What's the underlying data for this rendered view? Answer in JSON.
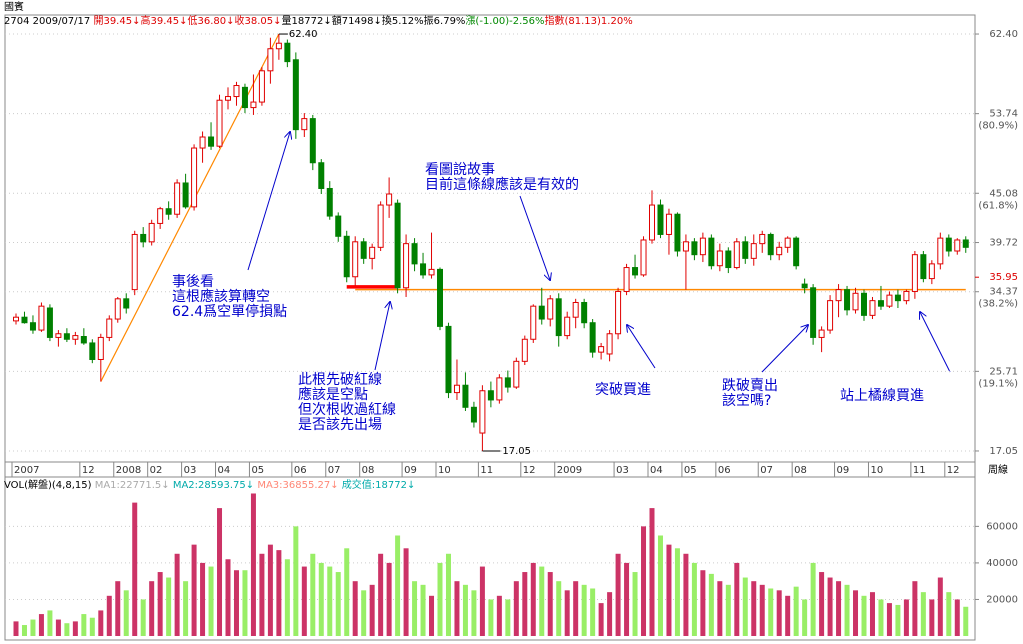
{
  "chart_data": {
    "type": "candlestick",
    "title": "國賓",
    "info": [
      {
        "text": "2704 2009/07/17 ",
        "color": "#000000"
      },
      {
        "text": "開39.45↓",
        "color": "#dd0000"
      },
      {
        "text": "高39.45↓",
        "color": "#dd0000"
      },
      {
        "text": "低36.80↓",
        "color": "#dd0000"
      },
      {
        "text": "收38.05↓",
        "color": "#dd0000"
      },
      {
        "text": "量18772↓額71498↓換5.12%振6.79%",
        "color": "#000000"
      },
      {
        "text": "漲(-1.00)-2.56%",
        "color": "#008800"
      },
      {
        "text": "指數(81.13)1.20%",
        "color": "#dd0000"
      }
    ],
    "period_label": "周線",
    "categories": [
      "2007",
      null,
      null,
      null,
      null,
      null,
      null,
      null,
      "12",
      null,
      null,
      null,
      "2008",
      null,
      null,
      null,
      "02",
      null,
      null,
      null,
      "03",
      null,
      null,
      null,
      "04",
      null,
      null,
      null,
      "05",
      null,
      null,
      null,
      null,
      "06",
      null,
      null,
      null,
      "07",
      null,
      null,
      null,
      "08",
      null,
      null,
      null,
      null,
      "09",
      null,
      null,
      null,
      "10",
      null,
      null,
      null,
      null,
      "11",
      null,
      null,
      null,
      null,
      "12",
      null,
      null,
      null,
      "2009",
      null,
      null,
      null,
      null,
      null,
      null,
      "03",
      null,
      null,
      null,
      "04",
      null,
      null,
      null,
      "05",
      null,
      null,
      null,
      "06",
      null,
      null,
      null,
      null,
      "07",
      null,
      null,
      null,
      "08",
      null,
      null,
      null,
      null,
      "09",
      null,
      null,
      null,
      "10",
      null,
      null,
      null,
      null,
      "11",
      null,
      null,
      null,
      "12",
      null,
      null
    ],
    "open": [
      31.2,
      31.6,
      31.0,
      30.2,
      32.6,
      29.4,
      29.8,
      29.2,
      29.5,
      28.8,
      27.0,
      29.4,
      31.4,
      33.6,
      34.6,
      40.6,
      39.8,
      41.8,
      43.4,
      42.8,
      46.2,
      43.6,
      50.0,
      51.2,
      50.2,
      55.2,
      55.6,
      56.6,
      54.4,
      55.0,
      58.4,
      60.8,
      61.4,
      59.6,
      52.0,
      53.2,
      48.4,
      45.6,
      42.6,
      40.4,
      36.0,
      39.8,
      38.0,
      39.2,
      43.8,
      44.0,
      34.8,
      39.6,
      37.4,
      36.2,
      36.8,
      30.6,
      23.4,
      24.2,
      21.8,
      19.0,
      23.6,
      22.6,
      25.0,
      24.0,
      26.8,
      29.2,
      32.8,
      31.4,
      33.6,
      29.6,
      31.6,
      33.2,
      31.0,
      27.8,
      27.6,
      29.8,
      34.4,
      37.0,
      36.2,
      40.0,
      43.8,
      40.6,
      42.8,
      38.8,
      39.8,
      38.4,
      40.2,
      37.2,
      38.8,
      37.0,
      39.8,
      38.0,
      39.6,
      40.6,
      38.4,
      39.2,
      40.2,
      35.2,
      34.8,
      29.4,
      30.2,
      33.4,
      34.6,
      32.4,
      34.2,
      31.8,
      33.4,
      32.8,
      34.0,
      33.4,
      34.4,
      38.4,
      35.8,
      37.4,
      40.2,
      38.8,
      40.0
    ],
    "high": [
      32.0,
      32.2,
      31.8,
      33.2,
      33.0,
      30.2,
      30.4,
      30.0,
      30.4,
      29.2,
      29.8,
      31.8,
      33.8,
      34.2,
      41.0,
      41.4,
      42.2,
      43.6,
      44.2,
      46.6,
      47.2,
      50.4,
      51.8,
      52.8,
      55.8,
      56.6,
      57.2,
      57.0,
      58.0,
      58.8,
      62.0,
      62.4,
      61.8,
      60.4,
      53.8,
      53.6,
      48.8,
      46.4,
      43.0,
      41.0,
      40.4,
      40.2,
      39.6,
      44.2,
      46.8,
      44.4,
      40.6,
      40.2,
      38.6,
      40.8,
      37.0,
      31.0,
      27.0,
      25.6,
      22.4,
      24.2,
      24.6,
      25.4,
      25.8,
      27.2,
      29.6,
      33.0,
      34.8,
      34.0,
      34.2,
      32.2,
      33.6,
      33.6,
      31.4,
      28.8,
      30.2,
      34.8,
      37.4,
      38.4,
      40.4,
      45.4,
      44.4,
      43.4,
      43.0,
      40.6,
      40.2,
      40.8,
      40.6,
      39.6,
      39.2,
      40.2,
      40.4,
      40.6,
      41.0,
      40.8,
      39.8,
      40.4,
      40.4,
      35.8,
      35.2,
      30.6,
      34.0,
      35.2,
      35.0,
      34.8,
      34.6,
      33.8,
      35.0,
      34.4,
      34.6,
      34.6,
      38.8,
      38.8,
      37.8,
      40.8,
      40.6,
      40.2,
      40.4
    ],
    "low": [
      30.8,
      30.9,
      29.8,
      30.0,
      29.0,
      28.4,
      28.9,
      28.6,
      28.6,
      26.6,
      24.6,
      29.0,
      31.0,
      32.0,
      34.0,
      39.2,
      39.4,
      41.2,
      42.2,
      42.4,
      43.4,
      43.2,
      48.4,
      49.8,
      50.0,
      54.2,
      54.6,
      53.8,
      53.6,
      54.6,
      57.0,
      59.6,
      58.8,
      51.0,
      51.2,
      47.6,
      45.0,
      42.2,
      39.8,
      35.4,
      35.0,
      37.4,
      36.8,
      38.8,
      42.4,
      34.2,
      33.8,
      36.6,
      35.8,
      35.8,
      30.2,
      22.8,
      22.6,
      21.4,
      19.6,
      17.05,
      21.8,
      22.2,
      23.4,
      23.8,
      26.4,
      28.8,
      30.8,
      30.6,
      28.4,
      29.2,
      30.4,
      30.4,
      27.2,
      27.0,
      26.8,
      29.2,
      34.0,
      35.8,
      36.0,
      39.6,
      40.2,
      38.4,
      38.2,
      34.6,
      37.8,
      37.6,
      36.8,
      36.6,
      36.4,
      36.8,
      37.4,
      37.2,
      38.6,
      37.8,
      37.8,
      38.6,
      36.8,
      34.2,
      28.6,
      27.8,
      29.8,
      31.6,
      31.8,
      32.0,
      31.2,
      31.4,
      32.4,
      32.6,
      32.6,
      33.0,
      33.6,
      35.4,
      35.2,
      36.8,
      38.2,
      38.4,
      38.6
    ],
    "close": [
      31.6,
      31.0,
      30.2,
      32.8,
      29.4,
      29.8,
      29.2,
      29.6,
      28.8,
      27.0,
      29.4,
      31.4,
      33.6,
      32.6,
      40.6,
      39.8,
      41.8,
      43.4,
      42.8,
      46.2,
      43.6,
      50.0,
      51.2,
      50.2,
      55.2,
      55.6,
      56.8,
      54.4,
      55.0,
      58.4,
      60.8,
      61.4,
      59.4,
      52.0,
      53.2,
      48.4,
      45.6,
      42.6,
      40.4,
      36.0,
      39.8,
      38.0,
      39.2,
      43.8,
      45.0,
      34.8,
      39.6,
      37.4,
      36.2,
      36.8,
      30.6,
      23.4,
      24.2,
      21.8,
      20.2,
      23.6,
      22.6,
      25.0,
      24.0,
      26.8,
      29.2,
      32.8,
      31.4,
      33.6,
      29.6,
      31.6,
      33.2,
      31.0,
      27.8,
      28.4,
      29.8,
      34.4,
      37.0,
      36.2,
      40.0,
      43.8,
      40.6,
      42.8,
      38.8,
      39.8,
      38.4,
      40.2,
      37.2,
      38.8,
      37.0,
      39.8,
      38.0,
      39.6,
      40.6,
      38.4,
      39.2,
      40.2,
      37.2,
      34.8,
      29.4,
      30.2,
      33.4,
      34.6,
      32.4,
      34.2,
      31.8,
      33.4,
      32.8,
      34.0,
      33.4,
      34.4,
      38.4,
      35.8,
      37.4,
      40.2,
      38.8,
      40.0,
      39.2
    ],
    "volume": [
      8000,
      6000,
      9000,
      12000,
      14000,
      9000,
      7000,
      8000,
      12000,
      10000,
      14000,
      22000,
      30000,
      25000,
      73000,
      20000,
      30000,
      35000,
      32000,
      45000,
      30000,
      50000,
      40000,
      38000,
      70000,
      42000,
      36000,
      36000,
      78000,
      45000,
      50000,
      47000,
      42000,
      60000,
      38000,
      45000,
      40000,
      38000,
      35000,
      48000,
      30000,
      25000,
      28000,
      45000,
      40000,
      55000,
      48000,
      30000,
      28000,
      22000,
      40000,
      45000,
      30000,
      28000,
      25000,
      38000,
      20000,
      22000,
      20000,
      30000,
      35000,
      40000,
      38000,
      35000,
      30000,
      25000,
      30000,
      28000,
      26000,
      18000,
      24000,
      45000,
      40000,
      35000,
      60000,
      70000,
      55000,
      50000,
      48000,
      45000,
      40000,
      36000,
      34000,
      30000,
      28000,
      40000,
      32000,
      30000,
      28000,
      26000,
      25000,
      22000,
      27000,
      20000,
      40000,
      35000,
      32000,
      30000,
      28000,
      25000,
      22000,
      24000,
      20000,
      18000,
      17000,
      20000,
      30000,
      24000,
      20000,
      32000,
      24000,
      20000,
      16000
    ],
    "up_color": "#e00000",
    "down_color": "#008000",
    "volume_up_color": "#cc3366",
    "volume_down_color": "#99ee66",
    "ylim": [
      15.85,
      64.47
    ],
    "yticks": [
      {
        "value": 62.4,
        "label": "62.40"
      },
      {
        "value": 53.74,
        "label": "53.74",
        "sub": "(80.9%)"
      },
      {
        "value": 45.08,
        "label": "45.08",
        "sub": "(61.8%)"
      },
      {
        "value": 39.72,
        "label": "39.72"
      },
      {
        "value": 34.37,
        "label": "34.37",
        "sub": "(38.2%)"
      },
      {
        "value": 25.71,
        "label": "25.71",
        "sub": "(19.1%)"
      },
      {
        "value": 17.05,
        "label": "17.05"
      }
    ],
    "last_price": 35.95,
    "high_label": "62.40",
    "low_label": "17.05",
    "volume_ylim": [
      0,
      81000
    ],
    "volume_yticks": [
      20000,
      40000,
      60000
    ],
    "volume_legend": [
      {
        "text": "VOL(解盤)(4,8,15) ",
        "color": "#000000"
      },
      {
        "text": "MA1:22771.5↓ ",
        "color": "#aaaaaa"
      },
      {
        "text": "MA2:28593.75↓ ",
        "color": "#00aaaa"
      },
      {
        "text": "MA3:36855.27↓ ",
        "color": "#ff8877"
      },
      {
        "text": "成交值:18772↓",
        "color": "#00aaaa"
      }
    ],
    "trendline": {
      "from": [
        10,
        24.6
      ],
      "to": [
        31,
        62.4
      ],
      "color": "#ff8800"
    },
    "support_line": {
      "value": 34.6,
      "from": 40,
      "to": 112,
      "color": "#ff8800"
    },
    "red_line": {
      "value": 34.9,
      "from": 39,
      "to": 45,
      "color": "#ff0000"
    },
    "grid": true,
    "annotations": [
      {
        "lines": [
          "事後看",
          "這根應該算轉空",
          "62.4爲空單停損點"
        ]
      },
      {
        "lines": [
          "看圖說故事",
          "目前這條線應該是有效的"
        ]
      },
      {
        "lines": [
          "此根先破紅線",
          "應該是空點",
          "但次根收過紅線",
          "是否該先出場"
        ]
      },
      {
        "lines": [
          "突破買進"
        ]
      },
      {
        "lines": [
          "跌破賣出",
          "該空嗎?"
        ]
      },
      {
        "lines": [
          "站上橘線買進"
        ]
      }
    ]
  }
}
